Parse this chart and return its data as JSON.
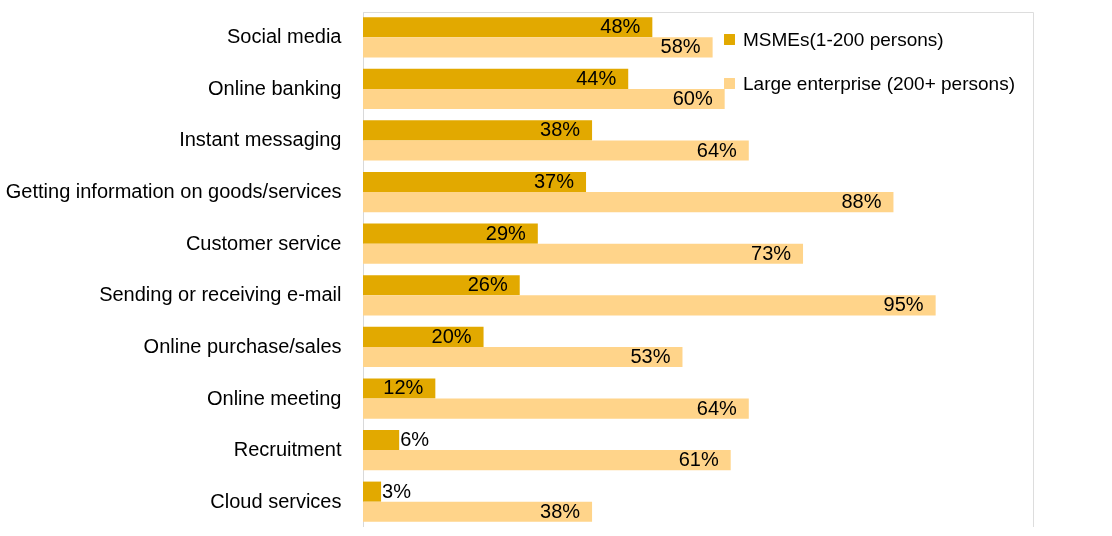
{
  "chart_data": {
    "type": "bar",
    "orientation": "horizontal",
    "legend": "top right",
    "categories": [
      "Social media",
      "Online banking",
      "Instant messaging",
      "Getting information on goods/services",
      "Customer service",
      "Sending or receiving e-mail",
      "Online purchase/sales",
      "Online meeting",
      "Recruitment",
      "Cloud services"
    ],
    "series": [
      {
        "name": "MSMEs(1-200 persons)",
        "color": "#e2a900",
        "values": [
          48,
          44,
          38,
          37,
          29,
          26,
          20,
          12,
          6,
          3
        ],
        "value_labels": [
          "48%",
          "44%",
          "38%",
          "37%",
          "29%",
          "26%",
          "20%",
          "12%",
          "6%",
          "3%"
        ]
      },
      {
        "name": "Large enterprise (200+ persons)",
        "color": "#ffd48a",
        "values": [
          58,
          60,
          64,
          88,
          73,
          95,
          53,
          64,
          61,
          38
        ],
        "value_labels": [
          "58%",
          "60%",
          "64%",
          "88%",
          "73%",
          "95%",
          "53%",
          "64%",
          "61%",
          "38%"
        ]
      }
    ]
  }
}
